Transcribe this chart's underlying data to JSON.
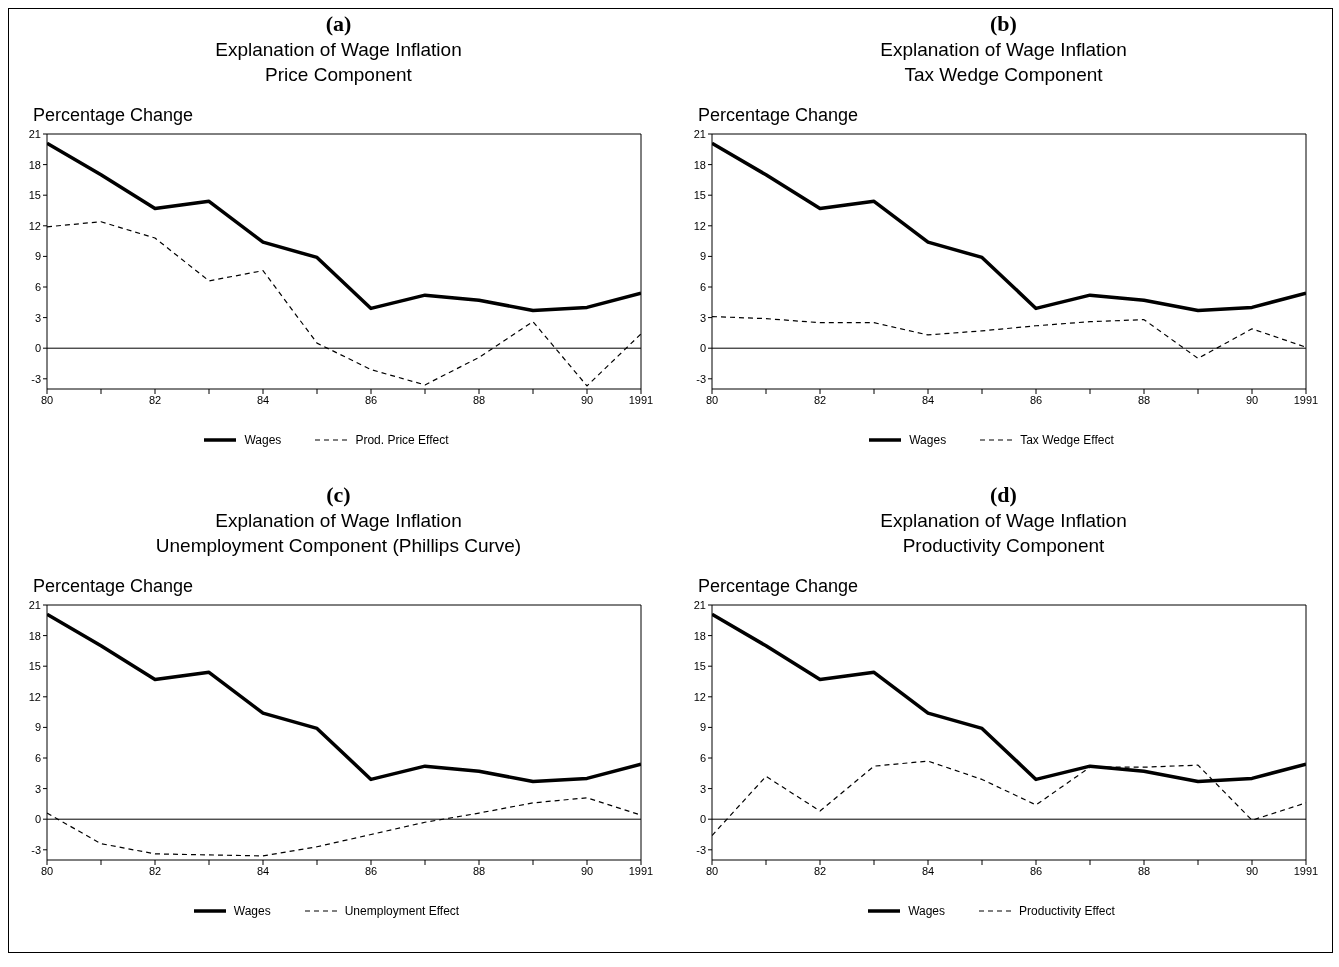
{
  "chart_data": [
    {
      "type": "line",
      "title": "(a)",
      "subtitle": "Explanation of Wage Inflation\nPrice Component",
      "ylabel": "Percentage Change",
      "x": [
        1980,
        1981,
        1982,
        1983,
        1984,
        1985,
        1986,
        1987,
        1988,
        1989,
        1990,
        1991
      ],
      "xlim": [
        1980,
        1991
      ],
      "xticks": [
        {
          "value": 1980,
          "label": "80"
        },
        {
          "value": 1981,
          "label": null
        },
        {
          "value": 1982,
          "label": "82"
        },
        {
          "value": 1983,
          "label": null
        },
        {
          "value": 1984,
          "label": "84"
        },
        {
          "value": 1985,
          "label": null
        },
        {
          "value": 1986,
          "label": "86"
        },
        {
          "value": 1987,
          "label": null
        },
        {
          "value": 1988,
          "label": "88"
        },
        {
          "value": 1989,
          "label": null
        },
        {
          "value": 1990,
          "label": "90"
        },
        {
          "value": 1991,
          "label": "1991"
        }
      ],
      "ylim": [
        -4,
        21
      ],
      "yticks": [
        -3,
        0,
        3,
        6,
        9,
        12,
        15,
        18,
        21
      ],
      "grid": false,
      "legend": "bottom",
      "ref_lines": [
        {
          "axis": "y",
          "value": 0,
          "color": "#000000"
        }
      ],
      "series": [
        {
          "name": "Wages",
          "color": "#000000",
          "line_style": "solid",
          "values": [
            20.1,
            17.0,
            13.7,
            14.4,
            10.4,
            8.9,
            3.9,
            5.2,
            4.7,
            3.7,
            4.0,
            5.4
          ]
        },
        {
          "name": "Prod. Price Effect",
          "color": "#000000",
          "line_style": "dashed",
          "values": [
            11.9,
            12.4,
            10.8,
            6.6,
            7.6,
            0.5,
            -2.1,
            -3.6,
            -0.9,
            2.6,
            -3.7,
            1.4
          ]
        }
      ]
    },
    {
      "type": "line",
      "title": "(b)",
      "subtitle": "Explanation of Wage Inflation\nTax Wedge Component",
      "ylabel": "Percentage Change",
      "x": [
        1980,
        1981,
        1982,
        1983,
        1984,
        1985,
        1986,
        1987,
        1988,
        1989,
        1990,
        1991
      ],
      "xlim": [
        1980,
        1991
      ],
      "xticks": [
        {
          "value": 1980,
          "label": "80"
        },
        {
          "value": 1981,
          "label": null
        },
        {
          "value": 1982,
          "label": "82"
        },
        {
          "value": 1983,
          "label": null
        },
        {
          "value": 1984,
          "label": "84"
        },
        {
          "value": 1985,
          "label": null
        },
        {
          "value": 1986,
          "label": "86"
        },
        {
          "value": 1987,
          "label": null
        },
        {
          "value": 1988,
          "label": "88"
        },
        {
          "value": 1989,
          "label": null
        },
        {
          "value": 1990,
          "label": "90"
        },
        {
          "value": 1991,
          "label": "1991"
        }
      ],
      "ylim": [
        -4,
        21
      ],
      "yticks": [
        -3,
        0,
        3,
        6,
        9,
        12,
        15,
        18,
        21
      ],
      "grid": false,
      "legend": "bottom",
      "ref_lines": [
        {
          "axis": "y",
          "value": 0,
          "color": "#000000"
        }
      ],
      "series": [
        {
          "name": "Wages",
          "color": "#000000",
          "line_style": "solid",
          "values": [
            20.1,
            17.0,
            13.7,
            14.4,
            10.4,
            8.9,
            3.9,
            5.2,
            4.7,
            3.7,
            4.0,
            5.4
          ]
        },
        {
          "name": "Tax Wedge Effect",
          "color": "#000000",
          "line_style": "dashed",
          "values": [
            3.1,
            2.9,
            2.5,
            2.5,
            1.3,
            1.7,
            2.2,
            2.6,
            2.8,
            -1.0,
            1.9,
            0.1
          ]
        }
      ]
    },
    {
      "type": "line",
      "title": "(c)",
      "subtitle": "Explanation of Wage Inflation\nUnemployment Component (Phillips Curve)",
      "ylabel": "Percentage Change",
      "x": [
        1980,
        1981,
        1982,
        1983,
        1984,
        1985,
        1986,
        1987,
        1988,
        1989,
        1990,
        1991
      ],
      "xlim": [
        1980,
        1991
      ],
      "xticks": [
        {
          "value": 1980,
          "label": "80"
        },
        {
          "value": 1981,
          "label": null
        },
        {
          "value": 1982,
          "label": "82"
        },
        {
          "value": 1983,
          "label": null
        },
        {
          "value": 1984,
          "label": "84"
        },
        {
          "value": 1985,
          "label": null
        },
        {
          "value": 1986,
          "label": "86"
        },
        {
          "value": 1987,
          "label": null
        },
        {
          "value": 1988,
          "label": "88"
        },
        {
          "value": 1989,
          "label": null
        },
        {
          "value": 1990,
          "label": "90"
        },
        {
          "value": 1991,
          "label": "1991"
        }
      ],
      "ylim": [
        -4,
        21
      ],
      "yticks": [
        -3,
        0,
        3,
        6,
        9,
        12,
        15,
        18,
        21
      ],
      "grid": false,
      "legend": "bottom",
      "ref_lines": [
        {
          "axis": "y",
          "value": 0,
          "color": "#000000"
        }
      ],
      "series": [
        {
          "name": "Wages",
          "color": "#000000",
          "line_style": "solid",
          "values": [
            20.1,
            17.0,
            13.7,
            14.4,
            10.4,
            8.9,
            3.9,
            5.2,
            4.7,
            3.7,
            4.0,
            5.4
          ]
        },
        {
          "name": "Unemployment Effect",
          "color": "#000000",
          "line_style": "dashed",
          "values": [
            0.6,
            -2.4,
            -3.4,
            -3.5,
            -3.6,
            -2.7,
            -1.5,
            -0.3,
            0.6,
            1.6,
            2.1,
            0.4
          ]
        }
      ]
    },
    {
      "type": "line",
      "title": "(d)",
      "subtitle": "Explanation of Wage Inflation\nProductivity Component",
      "ylabel": "Percentage Change",
      "x": [
        1980,
        1981,
        1982,
        1983,
        1984,
        1985,
        1986,
        1987,
        1988,
        1989,
        1990,
        1991
      ],
      "xlim": [
        1980,
        1991
      ],
      "xticks": [
        {
          "value": 1980,
          "label": "80"
        },
        {
          "value": 1981,
          "label": null
        },
        {
          "value": 1982,
          "label": "82"
        },
        {
          "value": 1983,
          "label": null
        },
        {
          "value": 1984,
          "label": "84"
        },
        {
          "value": 1985,
          "label": null
        },
        {
          "value": 1986,
          "label": "86"
        },
        {
          "value": 1987,
          "label": null
        },
        {
          "value": 1988,
          "label": "88"
        },
        {
          "value": 1989,
          "label": null
        },
        {
          "value": 1990,
          "label": "90"
        },
        {
          "value": 1991,
          "label": "1991"
        }
      ],
      "ylim": [
        -4,
        21
      ],
      "yticks": [
        -3,
        0,
        3,
        6,
        9,
        12,
        15,
        18,
        21
      ],
      "grid": false,
      "legend": "bottom",
      "ref_lines": [
        {
          "axis": "y",
          "value": 0,
          "color": "#000000"
        }
      ],
      "series": [
        {
          "name": "Wages",
          "color": "#000000",
          "line_style": "solid",
          "values": [
            20.1,
            17.0,
            13.7,
            14.4,
            10.4,
            8.9,
            3.9,
            5.2,
            4.7,
            3.7,
            4.0,
            5.4
          ]
        },
        {
          "name": "Productivity Effect",
          "color": "#000000",
          "line_style": "dashed",
          "values": [
            -1.6,
            4.2,
            0.8,
            5.2,
            5.7,
            3.9,
            1.4,
            5.1,
            5.1,
            5.3,
            -0.1,
            1.6
          ]
        }
      ]
    }
  ]
}
